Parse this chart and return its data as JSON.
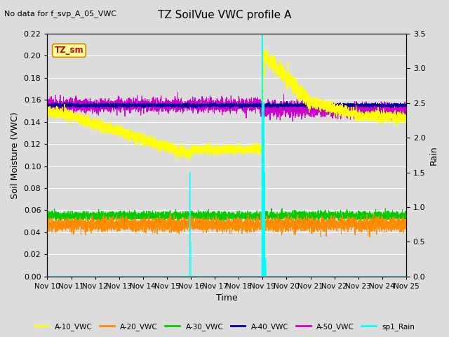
{
  "title": "TZ SoilVue VWC profile A",
  "subtitle": "No data for f_svp_A_05_VWC",
  "xlabel": "Time",
  "ylabel_left": "Soil Moisture (VWC)",
  "ylabel_right": "Rain",
  "ylim_left": [
    0.0,
    0.22
  ],
  "ylim_right": [
    0.0,
    3.5
  ],
  "yticks_left": [
    0.0,
    0.02,
    0.04,
    0.06,
    0.08,
    0.1,
    0.12,
    0.14,
    0.16,
    0.18,
    0.2,
    0.22
  ],
  "yticks_right": [
    0.0,
    0.5,
    1.0,
    1.5,
    2.0,
    2.5,
    3.0,
    3.5
  ],
  "bg_color": "#dcdcdc",
  "plot_bg_color": "#dcdcdc",
  "tz_sm_box_facecolor": "#ffff99",
  "tz_sm_box_edgecolor": "#cc8800",
  "tz_sm_text_color": "#cc0000",
  "grid_color": "#ffffff",
  "colors": {
    "A10": "#ffff00",
    "A20": "#ff8c00",
    "A30": "#00cc00",
    "A40": "#000099",
    "A50": "#cc00cc",
    "rain": "#00ffff"
  },
  "legend_labels": [
    "A-10_VWC",
    "A-20_VWC",
    "A-30_VWC",
    "A-40_VWC",
    "A-50_VWC",
    "sp1_Rain"
  ],
  "legend_colors": [
    "#ffff00",
    "#ff8c00",
    "#00cc00",
    "#000099",
    "#cc00cc",
    "#00ffff"
  ]
}
